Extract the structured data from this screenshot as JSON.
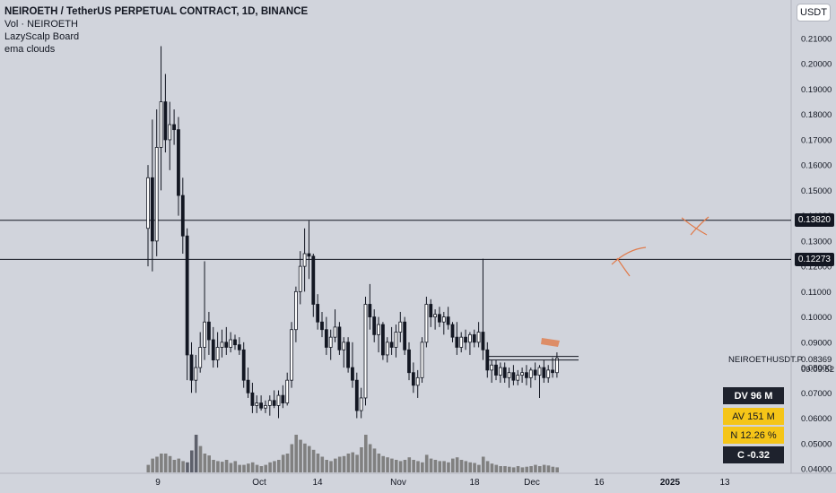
{
  "header": {
    "title": "NEIROETH / TetherUS PERPETUAL CONTRACT, 1D, BINANCE",
    "indicators": [
      "Vol · NEIROETH",
      "LazyScalp Board",
      "ema clouds"
    ]
  },
  "currency_button": "USDT",
  "price_axis": {
    "ticks": [
      "0.21000",
      "0.20000",
      "0.19000",
      "0.18000",
      "0.17000",
      "0.16000",
      "0.15000",
      "0.14000",
      "0.13000",
      "0.12000",
      "0.11000",
      "0.10000",
      "0.09000",
      "0.08000",
      "0.07000",
      "0.06000",
      "0.05000",
      "0.04000"
    ],
    "tick_values": [
      0.21,
      0.2,
      0.19,
      0.18,
      0.17,
      0.16,
      0.15,
      0.14,
      0.13,
      0.12,
      0.11,
      0.1,
      0.09,
      0.08,
      0.07,
      0.06,
      0.05,
      0.04
    ],
    "range": [
      0.04,
      0.215
    ],
    "levels": [
      {
        "label": "0.13820",
        "value": 0.1382
      },
      {
        "label": "0.12273",
        "value": 0.12273
      }
    ]
  },
  "time_axis": {
    "labels": [
      "9",
      "Oct",
      "14",
      "Nov",
      "18",
      "Dec",
      "16",
      "2025",
      "13"
    ],
    "bold": [
      "2025"
    ]
  },
  "symbol": {
    "name": "NEIROETHUSDT.P",
    "last_price": "0.08369",
    "last_value": 0.08369,
    "countdown": "09:09:52"
  },
  "lazyscalp": {
    "dv": "DV 96 M",
    "av": "AV 151 M",
    "n": "N 12.26 %",
    "c": "C  -0.32"
  },
  "colors": {
    "background": "#d1d4dc",
    "candle": "#131722",
    "volume": "#808080",
    "volume_bar_dark": "#5d606b",
    "annotation": "#e07a4a"
  },
  "chart_data": {
    "type": "candlestick",
    "ohlc": [
      [
        0.135,
        0.16,
        0.12,
        0.155
      ],
      [
        0.155,
        0.178,
        0.118,
        0.13
      ],
      [
        0.13,
        0.182,
        0.124,
        0.167
      ],
      [
        0.167,
        0.207,
        0.15,
        0.185
      ],
      [
        0.185,
        0.196,
        0.165,
        0.17
      ],
      [
        0.17,
        0.185,
        0.158,
        0.176
      ],
      [
        0.176,
        0.182,
        0.168,
        0.174
      ],
      [
        0.174,
        0.179,
        0.14,
        0.148
      ],
      [
        0.148,
        0.155,
        0.125,
        0.132
      ],
      [
        0.132,
        0.135,
        0.075,
        0.085
      ],
      [
        0.085,
        0.09,
        0.07,
        0.075
      ],
      [
        0.075,
        0.085,
        0.07,
        0.08
      ],
      [
        0.08,
        0.094,
        0.078,
        0.088
      ],
      [
        0.088,
        0.122,
        0.083,
        0.098
      ],
      [
        0.098,
        0.102,
        0.085,
        0.091
      ],
      [
        0.091,
        0.096,
        0.08,
        0.083
      ],
      [
        0.083,
        0.094,
        0.08,
        0.088
      ],
      [
        0.088,
        0.095,
        0.084,
        0.09
      ],
      [
        0.09,
        0.096,
        0.085,
        0.088
      ],
      [
        0.088,
        0.094,
        0.086,
        0.091
      ],
      [
        0.091,
        0.093,
        0.087,
        0.089
      ],
      [
        0.089,
        0.092,
        0.085,
        0.087
      ],
      [
        0.087,
        0.09,
        0.072,
        0.075
      ],
      [
        0.075,
        0.08,
        0.068,
        0.07
      ],
      [
        0.07,
        0.074,
        0.062,
        0.065
      ],
      [
        0.065,
        0.069,
        0.062,
        0.066
      ],
      [
        0.066,
        0.069,
        0.063,
        0.064
      ],
      [
        0.064,
        0.067,
        0.062,
        0.065
      ],
      [
        0.065,
        0.069,
        0.061,
        0.067
      ],
      [
        0.067,
        0.071,
        0.064,
        0.065
      ],
      [
        0.065,
        0.071,
        0.06,
        0.069
      ],
      [
        0.069,
        0.073,
        0.064,
        0.066
      ],
      [
        0.066,
        0.078,
        0.065,
        0.075
      ],
      [
        0.075,
        0.098,
        0.072,
        0.095
      ],
      [
        0.095,
        0.112,
        0.09,
        0.11
      ],
      [
        0.11,
        0.126,
        0.105,
        0.12
      ],
      [
        0.12,
        0.135,
        0.11,
        0.125
      ],
      [
        0.125,
        0.138,
        0.115,
        0.124
      ],
      [
        0.124,
        0.125,
        0.1,
        0.105
      ],
      [
        0.105,
        0.109,
        0.095,
        0.098
      ],
      [
        0.098,
        0.102,
        0.092,
        0.095
      ],
      [
        0.095,
        0.1,
        0.085,
        0.088
      ],
      [
        0.088,
        0.095,
        0.083,
        0.092
      ],
      [
        0.092,
        0.103,
        0.09,
        0.096
      ],
      [
        0.096,
        0.098,
        0.085,
        0.087
      ],
      [
        0.087,
        0.092,
        0.08,
        0.09
      ],
      [
        0.09,
        0.092,
        0.078,
        0.08
      ],
      [
        0.08,
        0.09,
        0.072,
        0.075
      ],
      [
        0.075,
        0.078,
        0.06,
        0.063
      ],
      [
        0.063,
        0.072,
        0.06,
        0.068
      ],
      [
        0.068,
        0.108,
        0.065,
        0.105
      ],
      [
        0.105,
        0.113,
        0.095,
        0.1
      ],
      [
        0.1,
        0.103,
        0.09,
        0.093
      ],
      [
        0.093,
        0.1,
        0.086,
        0.097
      ],
      [
        0.097,
        0.098,
        0.083,
        0.085
      ],
      [
        0.085,
        0.092,
        0.082,
        0.09
      ],
      [
        0.09,
        0.096,
        0.085,
        0.088
      ],
      [
        0.088,
        0.097,
        0.084,
        0.094
      ],
      [
        0.094,
        0.102,
        0.09,
        0.098
      ],
      [
        0.098,
        0.1,
        0.085,
        0.087
      ],
      [
        0.087,
        0.09,
        0.075,
        0.078
      ],
      [
        0.078,
        0.082,
        0.07,
        0.073
      ],
      [
        0.073,
        0.079,
        0.068,
        0.076
      ],
      [
        0.076,
        0.092,
        0.074,
        0.09
      ],
      [
        0.09,
        0.108,
        0.088,
        0.105
      ],
      [
        0.105,
        0.107,
        0.096,
        0.1
      ],
      [
        0.1,
        0.103,
        0.095,
        0.101
      ],
      [
        0.101,
        0.104,
        0.096,
        0.098
      ],
      [
        0.098,
        0.102,
        0.093,
        0.1
      ],
      [
        0.1,
        0.104,
        0.095,
        0.097
      ],
      [
        0.097,
        0.098,
        0.09,
        0.092
      ],
      [
        0.092,
        0.098,
        0.085,
        0.088
      ],
      [
        0.088,
        0.094,
        0.086,
        0.092
      ],
      [
        0.092,
        0.095,
        0.087,
        0.09
      ],
      [
        0.09,
        0.094,
        0.085,
        0.093
      ],
      [
        0.093,
        0.095,
        0.088,
        0.09
      ],
      [
        0.09,
        0.098,
        0.088,
        0.094
      ],
      [
        0.094,
        0.123,
        0.083,
        0.087
      ],
      [
        0.087,
        0.09,
        0.076,
        0.079
      ],
      [
        0.079,
        0.083,
        0.074,
        0.081
      ],
      [
        0.081,
        0.083,
        0.075,
        0.077
      ],
      [
        0.077,
        0.082,
        0.074,
        0.08
      ],
      [
        0.08,
        0.082,
        0.074,
        0.076
      ],
      [
        0.076,
        0.08,
        0.072,
        0.078
      ],
      [
        0.078,
        0.081,
        0.073,
        0.075
      ],
      [
        0.075,
        0.079,
        0.073,
        0.077
      ],
      [
        0.077,
        0.08,
        0.074,
        0.078
      ],
      [
        0.078,
        0.081,
        0.073,
        0.076
      ],
      [
        0.076,
        0.08,
        0.072,
        0.079
      ],
      [
        0.079,
        0.082,
        0.075,
        0.077
      ],
      [
        0.077,
        0.081,
        0.068,
        0.08
      ],
      [
        0.08,
        0.083,
        0.074,
        0.076
      ],
      [
        0.076,
        0.081,
        0.074,
        0.079
      ],
      [
        0.079,
        0.084,
        0.076,
        0.078
      ],
      [
        0.078,
        0.086,
        0.076,
        0.0837
      ]
    ],
    "volume": [
      12,
      22,
      25,
      30,
      30,
      26,
      20,
      22,
      18,
      16,
      35,
      60,
      42,
      30,
      27,
      20,
      18,
      17,
      20,
      15,
      18,
      12,
      12,
      14,
      16,
      12,
      10,
      12,
      16,
      18,
      20,
      28,
      30,
      45,
      60,
      52,
      46,
      42,
      36,
      30,
      25,
      20,
      18,
      22,
      25,
      26,
      30,
      32,
      28,
      40,
      60,
      45,
      38,
      30,
      26,
      24,
      22,
      20,
      18,
      20,
      24,
      20,
      18,
      16,
      28,
      22,
      20,
      18,
      18,
      16,
      22,
      24,
      20,
      18,
      16,
      15,
      12,
      25,
      18,
      14,
      12,
      10,
      10,
      9,
      8,
      10,
      8,
      9,
      10,
      12,
      10,
      12,
      11,
      9,
      8
    ],
    "volume_dark_indices": [
      9,
      10,
      11
    ]
  }
}
